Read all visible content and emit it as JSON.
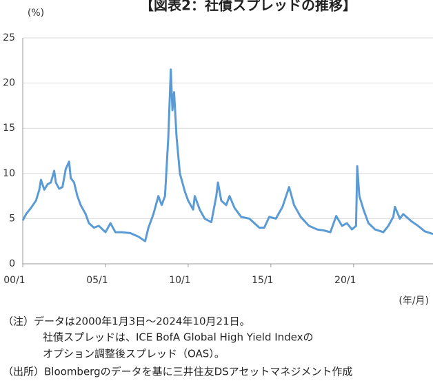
{
  "chart_data": {
    "type": "line",
    "title": "【図表2：社債スプレッドの推移】",
    "y_label": "(%)",
    "x_label": "(年/月)",
    "notes": [
      "（注）データは2000年1月3日～2024年10月21日。",
      "社債スプレッドは、ICE BofA Global High Yield Indexの",
      "オプション調整後スプレッド（OAS）。",
      "（出所）Bloombergのデータを基に三井住友DSアセットマネジメント作成"
    ],
    "x": [
      2000.0,
      2000.2,
      2000.5,
      2000.8,
      2001.0,
      2001.1,
      2001.3,
      2001.5,
      2001.7,
      2001.9,
      2002.0,
      2002.2,
      2002.4,
      2002.6,
      2002.8,
      2002.9,
      2003.1,
      2003.3,
      2003.5,
      2003.8,
      2004.0,
      2004.3,
      2004.6,
      2005.0,
      2005.3,
      2005.6,
      2006.0,
      2006.5,
      2007.0,
      2007.4,
      2007.6,
      2007.9,
      2008.2,
      2008.4,
      2008.6,
      2008.8,
      2008.95,
      2009.05,
      2009.15,
      2009.3,
      2009.5,
      2009.8,
      2010.0,
      2010.3,
      2010.4,
      2010.7,
      2011.0,
      2011.4,
      2011.7,
      2011.8,
      2012.0,
      2012.3,
      2012.5,
      2012.8,
      2013.2,
      2013.7,
      2014.3,
      2014.6,
      2014.9,
      2015.3,
      2015.7,
      2016.1,
      2016.4,
      2016.8,
      2017.3,
      2017.8,
      2018.2,
      2018.6,
      2018.95,
      2019.3,
      2019.6,
      2019.9,
      2020.15,
      2020.22,
      2020.35,
      2020.6,
      2020.9,
      2021.3,
      2021.8,
      2022.1,
      2022.4,
      2022.5,
      2022.8,
      2023.0,
      2023.5,
      2023.9,
      2024.3,
      2024.8
    ],
    "series": [
      {
        "name": "OAS",
        "color": "#5b9bd5",
        "values": [
          4.8,
          5.5,
          6.2,
          7,
          8.2,
          9.3,
          8.2,
          8.8,
          9.0,
          10.3,
          9.0,
          8.3,
          8.5,
          10.5,
          11.3,
          9.5,
          9.0,
          7.5,
          6.5,
          5.5,
          4.5,
          4.0,
          4.2,
          3.5,
          4.5,
          3.5,
          3.5,
          3.4,
          3.0,
          2.5,
          4.0,
          5.5,
          7.5,
          6.5,
          7.5,
          14,
          21.5,
          17,
          19,
          14,
          10,
          8,
          7,
          6,
          7.5,
          6,
          5,
          4.6,
          7.5,
          9,
          7,
          6.5,
          7.5,
          6.2,
          5.2,
          5,
          4,
          4,
          5.2,
          5.0,
          6.3,
          8.5,
          6.5,
          5.2,
          4.2,
          3.8,
          3.7,
          3.5,
          5.3,
          4.2,
          4.5,
          3.8,
          4.2,
          10.8,
          7.5,
          6.0,
          4.5,
          3.8,
          3.5,
          4.2,
          5.2,
          6.3,
          5.0,
          5.5,
          4.7,
          4.2,
          3.6,
          3.3
        ]
      }
    ],
    "xlim": [
      2000,
      2024.8
    ],
    "xticks": [
      {
        "value": 2000,
        "label": "00/1"
      },
      {
        "value": 2005,
        "label": "05/1"
      },
      {
        "value": 2010,
        "label": "10/1"
      },
      {
        "value": 2015,
        "label": "15/1"
      },
      {
        "value": 2020,
        "label": "20/1"
      }
    ],
    "ylim": [
      0,
      25
    ],
    "yticks": [
      0,
      5,
      10,
      15,
      20,
      25
    ],
    "grid": true
  }
}
